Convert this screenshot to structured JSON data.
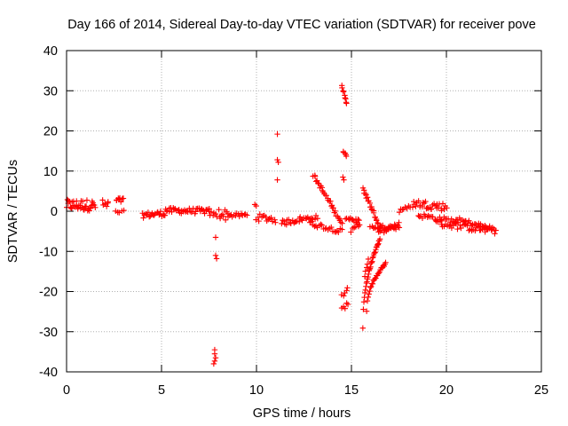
{
  "chart_data": {
    "type": "scatter",
    "title": "Day 166 of 2014, Sidereal Day-to-day VTEC variation (SDTVAR) for receiver pove",
    "xlabel": "GPS time / hours",
    "ylabel": "SDTVAR / TECUs",
    "xlim": [
      0,
      25
    ],
    "ylim": [
      -40,
      40
    ],
    "xticks": [
      0,
      5,
      10,
      15,
      20,
      25
    ],
    "yticks": [
      -40,
      -30,
      -20,
      -10,
      0,
      10,
      20,
      30,
      40
    ],
    "grid": true,
    "marker": "+",
    "color": "#ff0000",
    "segments": [
      {
        "x0": 0.0,
        "x1": 1.5,
        "y0": 1.5,
        "y1": 1.5,
        "n": 40,
        "jitter": 1.4
      },
      {
        "x0": 1.9,
        "x1": 2.2,
        "y0": 1.5,
        "y1": 1.5,
        "n": 7,
        "jitter": 1.4
      },
      {
        "x0": 2.6,
        "x1": 3.0,
        "y0": 2.7,
        "y1": 2.7,
        "n": 8,
        "jitter": 0.7
      },
      {
        "x0": 2.6,
        "x1": 3.0,
        "y0": -0.2,
        "y1": -0.2,
        "n": 5,
        "jitter": 0.4
      },
      {
        "x0": 4.0,
        "x1": 5.2,
        "y0": -1.0,
        "y1": -0.5,
        "n": 22,
        "jitter": 0.7
      },
      {
        "x0": 5.2,
        "x1": 7.5,
        "y0": 0.2,
        "y1": 0.0,
        "n": 40,
        "jitter": 0.7
      },
      {
        "x0": 7.5,
        "x1": 7.9,
        "y0": -0.5,
        "y1": -1.0,
        "n": 7,
        "jitter": 0.6
      },
      {
        "x0": 8.0,
        "x1": 8.5,
        "y0": -0.5,
        "y1": -1.0,
        "n": 10,
        "jitter": 1.4
      },
      {
        "x0": 8.5,
        "x1": 9.5,
        "y0": -1.0,
        "y1": -1.0,
        "n": 14,
        "jitter": 0.5
      },
      {
        "x0": 9.9,
        "x1": 10.0,
        "y0": 1.5,
        "y1": 1.5,
        "n": 2,
        "jitter": 0.4
      },
      {
        "x0": 10.0,
        "x1": 11.0,
        "y0": -1.5,
        "y1": -2.0,
        "n": 16,
        "jitter": 0.9
      },
      {
        "x0": 11.3,
        "x1": 12.3,
        "y0": -3.0,
        "y1": -2.0,
        "n": 16,
        "jitter": 0.7
      },
      {
        "x0": 12.3,
        "x1": 13.2,
        "y0": -2.0,
        "y1": -1.5,
        "n": 14,
        "jitter": 0.5
      },
      {
        "x0": 13.0,
        "x1": 14.5,
        "y0": 9.0,
        "y1": -3.0,
        "n": 32,
        "jitter": 0.5
      },
      {
        "x0": 12.8,
        "x1": 14.5,
        "y0": -3.0,
        "y1": -5.0,
        "n": 22,
        "jitter": 0.6
      },
      {
        "x0": 14.5,
        "x1": 14.75,
        "y0": 31.0,
        "y1": 27.0,
        "n": 9,
        "jitter": 0.4
      },
      {
        "x0": 14.55,
        "x1": 14.75,
        "y0": 15.0,
        "y1": 13.5,
        "n": 5,
        "jitter": 0.3
      },
      {
        "x0": 14.5,
        "x1": 14.8,
        "y0": -21.0,
        "y1": -19.5,
        "n": 5,
        "jitter": 0.6
      },
      {
        "x0": 14.5,
        "x1": 14.8,
        "y0": -24.5,
        "y1": -23.0,
        "n": 5,
        "jitter": 0.5
      },
      {
        "x0": 14.7,
        "x1": 15.4,
        "y0": -1.5,
        "y1": -2.5,
        "n": 12,
        "jitter": 0.6
      },
      {
        "x0": 15.0,
        "x1": 15.4,
        "y0": -5.0,
        "y1": -3.0,
        "n": 8,
        "jitter": 0.5
      },
      {
        "x0": 15.6,
        "x1": 16.5,
        "y0": 5.5,
        "y1": -4.0,
        "n": 24,
        "jitter": 0.5
      },
      {
        "x0": 16.0,
        "x1": 17.5,
        "y0": -4.0,
        "y1": -4.0,
        "n": 22,
        "jitter": 0.5
      },
      {
        "x0": 16.4,
        "x1": 17.5,
        "y0": -5.5,
        "y1": -3.0,
        "n": 16,
        "jitter": 0.5
      },
      {
        "x0": 15.7,
        "x1": 15.9,
        "y0": -16.0,
        "y1": -12.0,
        "n": 5,
        "jitter": 0.4
      },
      {
        "x0": 17.5,
        "x1": 18.3,
        "y0": 0.0,
        "y1": 1.5,
        "n": 10,
        "jitter": 0.4
      },
      {
        "x0": 18.3,
        "x1": 20.0,
        "y0": 2.0,
        "y1": 1.0,
        "n": 30,
        "jitter": 1.0
      },
      {
        "x0": 18.5,
        "x1": 20.5,
        "y0": -1.0,
        "y1": -2.5,
        "n": 26,
        "jitter": 0.6
      },
      {
        "x0": 19.5,
        "x1": 22.6,
        "y0": -3.0,
        "y1": -5.0,
        "n": 40,
        "jitter": 0.8
      },
      {
        "x0": 20.5,
        "x1": 22.5,
        "y0": -2.0,
        "y1": -4.5,
        "n": 30,
        "jitter": 0.6
      }
    ],
    "curves": [
      {
        "x0": 15.6,
        "x1": 16.5,
        "y0": -29.0,
        "y1": -7.0,
        "power": 0.45,
        "n": 34
      },
      {
        "x0": 15.8,
        "x1": 16.8,
        "y0": -25.0,
        "y1": -13.0,
        "power": 0.45,
        "n": 26
      }
    ],
    "points": [
      [
        7.85,
        -6.5
      ],
      [
        7.85,
        -11.0
      ],
      [
        7.9,
        -11.8
      ],
      [
        7.8,
        -34.5
      ],
      [
        7.8,
        -35.5
      ],
      [
        7.85,
        -36.5
      ],
      [
        7.8,
        -37.3
      ],
      [
        7.75,
        -38.0
      ],
      [
        11.1,
        19.2
      ],
      [
        11.1,
        12.8
      ],
      [
        11.15,
        12.2
      ],
      [
        11.1,
        7.8
      ],
      [
        14.55,
        8.5
      ],
      [
        14.6,
        7.8
      ]
    ]
  }
}
